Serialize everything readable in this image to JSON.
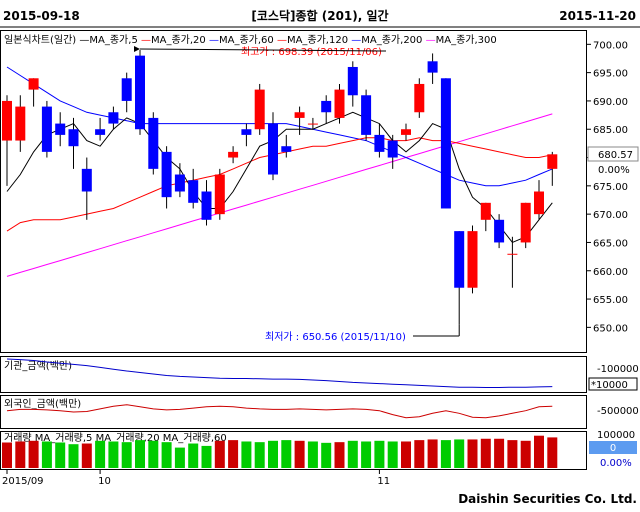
{
  "header": {
    "date_start": "2015-09-18",
    "title": "[코스닥]종합 (201), 일간",
    "date_end": "2015-11-20"
  },
  "footer": {
    "company": "Daishin Securities Co. Ltd."
  },
  "colors": {
    "up": "#ff0000",
    "down": "#0000ff",
    "ma5": "#000000",
    "ma20": "#ff0000",
    "ma60": "#0000ff",
    "ma120": "#ff0000",
    "ma200": "#0000ff",
    "ma300": "#ff00ff",
    "institution": "#0000cc",
    "foreign": "#cc0000",
    "vol_up": "#cc0000",
    "vol_down": "#00cc00"
  },
  "chart_data": [
    {
      "type": "candlestick",
      "legend": [
        {
          "label": "일본식차트(일간)",
          "color": "#000000"
        },
        {
          "label": "MA_종가,5",
          "color": "#000000"
        },
        {
          "label": "MA_종가,20",
          "color": "#ff0000"
        },
        {
          "label": "MA_종가,60",
          "color": "#0000ff"
        },
        {
          "label": "MA_종가,120",
          "color": "#ff0000"
        },
        {
          "label": "MA_종가,200",
          "color": "#0000ff"
        },
        {
          "label": "MA_종가,300",
          "color": "#ff00ff"
        }
      ],
      "ylim": [
        646,
        702
      ],
      "yticks": [
        650,
        655,
        660,
        665,
        670,
        675,
        680,
        685,
        690,
        695,
        700
      ],
      "ytick_labels": [
        "650.00",
        "655.00",
        "660.00",
        "665.00",
        "670.00",
        "675.00",
        "680.00",
        "685.00",
        "690.00",
        "695.00",
        "700.00"
      ],
      "current": {
        "value": "680.57",
        "change": "0.00%"
      },
      "max_label": "최고가 : 698.39 (2015/11/06)",
      "min_label": "최저가 : 650.56 (2015/11/10)",
      "candles": [
        {
          "o": 683,
          "h": 691,
          "l": 675,
          "c": 690
        },
        {
          "o": 683,
          "h": 691,
          "l": 681,
          "c": 689
        },
        {
          "o": 692,
          "h": 694,
          "l": 689,
          "c": 694
        },
        {
          "o": 689,
          "h": 690,
          "l": 680,
          "c": 681
        },
        {
          "o": 686,
          "h": 688,
          "l": 682,
          "c": 684
        },
        {
          "o": 685,
          "h": 687,
          "l": 678,
          "c": 682
        },
        {
          "o": 678,
          "h": 680,
          "l": 669,
          "c": 674
        },
        {
          "o": 685,
          "h": 687,
          "l": 683,
          "c": 684
        },
        {
          "o": 688,
          "h": 689,
          "l": 685,
          "c": 686
        },
        {
          "o": 694,
          "h": 695,
          "l": 688,
          "c": 690
        },
        {
          "o": 698,
          "h": 699,
          "l": 684,
          "c": 685
        },
        {
          "o": 687,
          "h": 688,
          "l": 677,
          "c": 678
        },
        {
          "o": 681,
          "h": 682,
          "l": 671,
          "c": 673
        },
        {
          "o": 677,
          "h": 679,
          "l": 673,
          "c": 674
        },
        {
          "o": 676,
          "h": 678,
          "l": 671,
          "c": 672
        },
        {
          "o": 674,
          "h": 676,
          "l": 668,
          "c": 669
        },
        {
          "o": 670,
          "h": 678,
          "l": 669,
          "c": 677
        },
        {
          "o": 680,
          "h": 682,
          "l": 679,
          "c": 681
        },
        {
          "o": 685,
          "h": 686,
          "l": 682,
          "c": 684
        },
        {
          "o": 685,
          "h": 693,
          "l": 684,
          "c": 692
        },
        {
          "o": 686,
          "h": 688,
          "l": 676,
          "c": 677
        },
        {
          "o": 682,
          "h": 684,
          "l": 680,
          "c": 681
        },
        {
          "o": 687,
          "h": 689,
          "l": 684,
          "c": 688
        },
        {
          "o": 686,
          "h": 687,
          "l": 685,
          "c": 686
        },
        {
          "o": 690,
          "h": 691,
          "l": 686,
          "c": 688
        },
        {
          "o": 687,
          "h": 693,
          "l": 686,
          "c": 692
        },
        {
          "o": 696,
          "h": 697,
          "l": 689,
          "c": 691
        },
        {
          "o": 691,
          "h": 692,
          "l": 683,
          "c": 684
        },
        {
          "o": 684,
          "h": 686,
          "l": 680,
          "c": 681
        },
        {
          "o": 683,
          "h": 684,
          "l": 678,
          "c": 680
        },
        {
          "o": 684,
          "h": 686,
          "l": 683,
          "c": 685
        },
        {
          "o": 688,
          "h": 694,
          "l": 687,
          "c": 693
        },
        {
          "o": 697,
          "h": 698.39,
          "l": 693,
          "c": 695
        },
        {
          "o": 694,
          "h": 694,
          "l": 671,
          "c": 671
        },
        {
          "o": 667,
          "h": 667,
          "l": 650.56,
          "c": 657
        },
        {
          "o": 657,
          "h": 668,
          "l": 656,
          "c": 667
        },
        {
          "o": 669,
          "h": 672,
          "l": 667,
          "c": 672
        },
        {
          "o": 669,
          "h": 670,
          "l": 664,
          "c": 665
        },
        {
          "o": 663,
          "h": 666,
          "l": 657,
          "c": 663
        },
        {
          "o": 665,
          "h": 672,
          "l": 664,
          "c": 672
        },
        {
          "o": 670,
          "h": 676,
          "l": 669,
          "c": 674
        },
        {
          "o": 678,
          "h": 681,
          "l": 675,
          "c": 680.57
        }
      ],
      "ma5": [
        674,
        677,
        681,
        684,
        685,
        686,
        683,
        682,
        685,
        687,
        686,
        683,
        680,
        678,
        674,
        671,
        671,
        674,
        678,
        682,
        683,
        685,
        685,
        685,
        686,
        687,
        688,
        687,
        686,
        683,
        681,
        683,
        686,
        685,
        678,
        673,
        671,
        668,
        665,
        666,
        669,
        672
      ],
      "ma20": [
        667,
        668.5,
        669,
        669,
        669,
        669.5,
        670,
        670.5,
        671,
        672,
        673,
        674,
        675,
        675.5,
        676,
        676.5,
        677,
        678,
        679,
        680,
        680.5,
        681,
        681.5,
        682,
        682,
        682.5,
        683,
        683.5,
        683.5,
        683,
        683,
        683.5,
        683,
        683,
        682.5,
        682,
        681.5,
        681,
        680.5,
        680,
        680,
        680.5
      ],
      "ma60": [
        696,
        694.5,
        693,
        691.5,
        690,
        689,
        688,
        687.5,
        687,
        686.5,
        686,
        686,
        686,
        686,
        686,
        686,
        686,
        686,
        686,
        686,
        686,
        686,
        685.5,
        685,
        684.5,
        684,
        683.5,
        683,
        682,
        681,
        680,
        679,
        678,
        677,
        676,
        675.5,
        675,
        675,
        675.5,
        676,
        677,
        678
      ],
      "ma300": [
        659,
        659.7,
        660.4,
        661.1,
        661.8,
        662.5,
        663.2,
        663.9,
        664.6,
        665.3,
        666,
        666.7,
        667.4,
        668.1,
        668.8,
        669.5,
        670.2,
        670.9,
        671.6,
        672.3,
        673,
        673.7,
        674.4,
        675.1,
        675.8,
        676.5,
        677.2,
        677.9,
        678.6,
        679.3,
        680,
        680.7,
        681.4,
        682.1,
        682.8,
        683.5,
        684.2,
        684.9,
        685.6,
        686.3,
        687,
        687.7
      ]
    },
    {
      "type": "line",
      "legend": "기관_금액(백만)",
      "ytick_labels": [
        "-100000",
        "*10000"
      ],
      "values": [
        1.0,
        0.98,
        0.95,
        0.9,
        0.86,
        0.82,
        0.78,
        0.72,
        0.66,
        0.6,
        0.55,
        0.5,
        0.45,
        0.42,
        0.4,
        0.38,
        0.36,
        0.35,
        0.35,
        0.34,
        0.33,
        0.33,
        0.32,
        0.3,
        0.28,
        0.25,
        0.22,
        0.2,
        0.18,
        0.16,
        0.14,
        0.12,
        0.1,
        0.08,
        0.06,
        0.06,
        0.05,
        0.05,
        0.06,
        0.06,
        0.07,
        0.08
      ]
    },
    {
      "type": "line",
      "legend": "외국인_금액(백만)",
      "ytick_labels": [
        "-500000"
      ],
      "values": [
        0.55,
        0.6,
        0.6,
        0.58,
        0.55,
        0.5,
        0.52,
        0.62,
        0.72,
        0.78,
        0.7,
        0.62,
        0.58,
        0.6,
        0.65,
        0.7,
        0.72,
        0.7,
        0.65,
        0.62,
        0.6,
        0.6,
        0.62,
        0.6,
        0.58,
        0.6,
        0.62,
        0.6,
        0.55,
        0.4,
        0.28,
        0.32,
        0.45,
        0.55,
        0.45,
        0.3,
        0.28,
        0.35,
        0.45,
        0.55,
        0.7,
        0.72
      ]
    },
    {
      "type": "bar",
      "legend": [
        "거래량",
        "MA_거래량,5",
        "MA_거래량,20",
        "MA_거래량,60"
      ],
      "ytick_labels": [
        "100000",
        "0"
      ],
      "current": {
        "value": "0",
        "change": "0.00%"
      },
      "values": [
        0.75,
        0.78,
        0.8,
        0.78,
        0.75,
        0.7,
        0.72,
        0.8,
        0.78,
        0.76,
        0.82,
        0.8,
        0.76,
        0.6,
        0.72,
        0.65,
        0.8,
        0.82,
        0.78,
        0.76,
        0.8,
        0.82,
        0.8,
        0.78,
        0.74,
        0.76,
        0.8,
        0.78,
        0.8,
        0.78,
        0.78,
        0.82,
        0.84,
        0.82,
        0.84,
        0.84,
        0.86,
        0.86,
        0.82,
        0.8,
        0.95,
        0.9
      ],
      "up": [
        true,
        true,
        true,
        false,
        false,
        false,
        true,
        false,
        false,
        false,
        false,
        false,
        false,
        false,
        false,
        false,
        true,
        true,
        false,
        false,
        false,
        false,
        true,
        false,
        false,
        true,
        false,
        false,
        false,
        false,
        true,
        true,
        true,
        false,
        false,
        true,
        true,
        true,
        true,
        true,
        true,
        true
      ]
    }
  ],
  "xaxis": {
    "labels": [
      {
        "text": "2015/09",
        "index": 0
      },
      {
        "text": "10",
        "index": 7
      },
      {
        "text": "11",
        "index": 28
      }
    ]
  }
}
